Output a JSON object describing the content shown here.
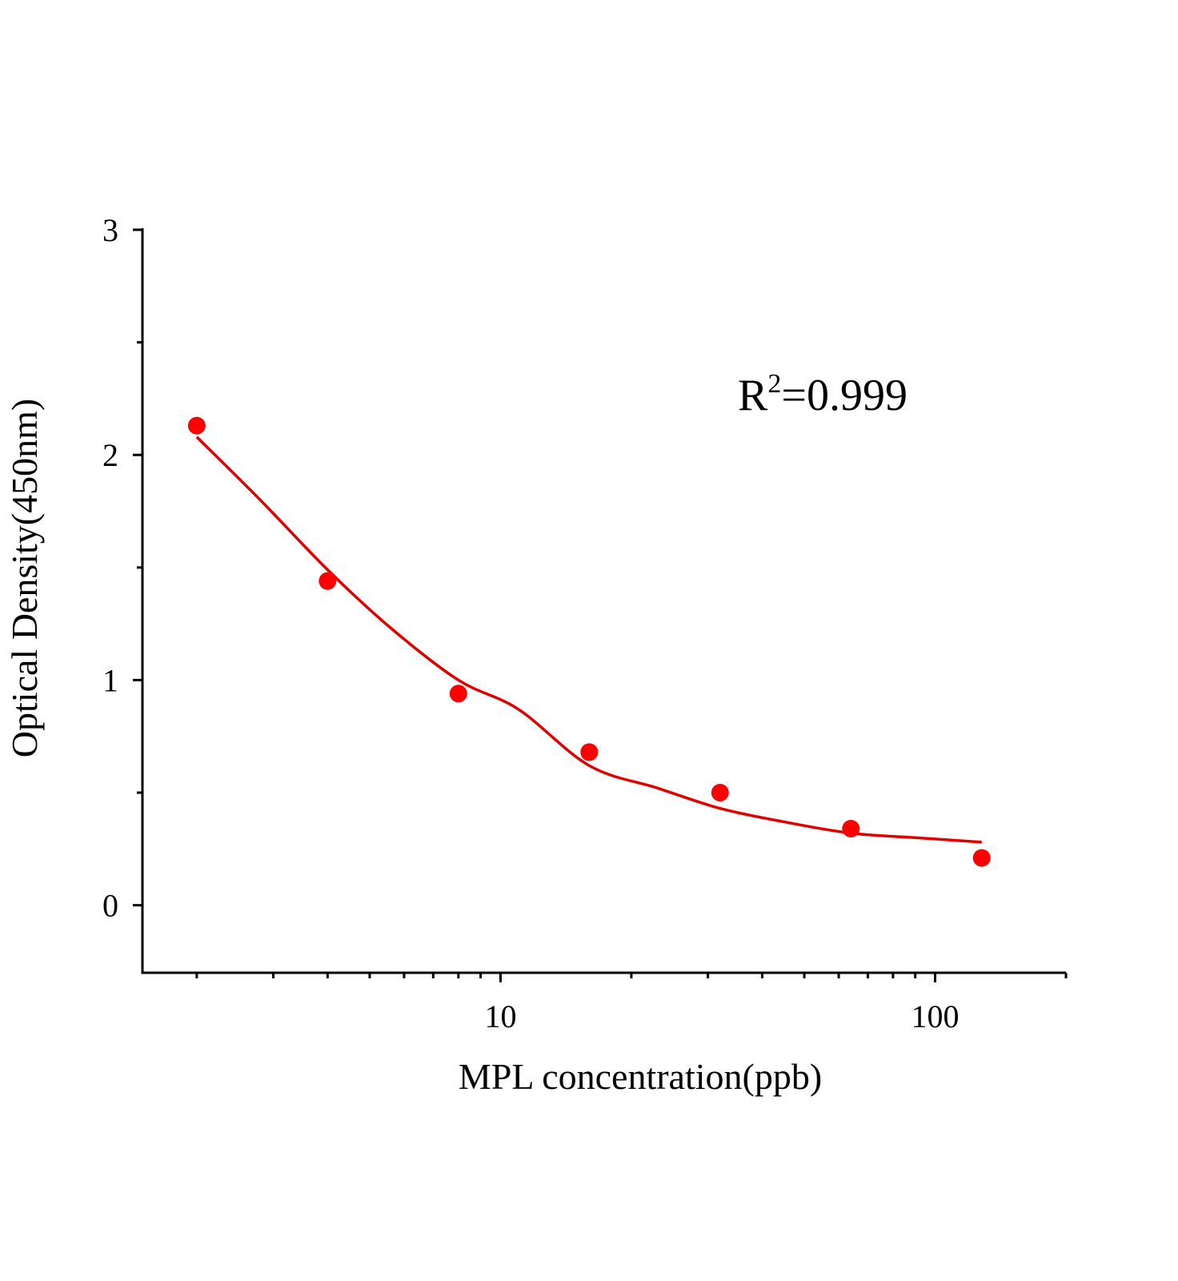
{
  "chart_data": {
    "type": "scatter",
    "x_label": "MPL concentration(ppb)",
    "y_label": "Optical Density(450nm)",
    "annotation": {
      "base": "R",
      "superscript": "2",
      "text": "=0.999"
    },
    "x_log": true,
    "xlim": [
      1.5,
      200
    ],
    "xticks": [
      10,
      100
    ],
    "xminorticks": [
      2,
      3,
      4,
      5,
      6,
      7,
      8,
      9,
      20,
      30,
      40,
      50,
      60,
      70,
      80,
      90,
      200
    ],
    "ylim": [
      -0.3,
      3
    ],
    "yticks": [
      0,
      1,
      2,
      3
    ],
    "yminorticks": [
      0.5,
      1.5,
      2.5
    ],
    "series": [
      {
        "color": "#ff0000",
        "x": [
          2,
          4,
          8,
          16,
          32,
          64,
          128
        ],
        "values": [
          2.13,
          1.44,
          0.94,
          0.68,
          0.5,
          0.34,
          0.21
        ]
      }
    ],
    "fit": {
      "color": "#e00000",
      "x": [
        2,
        2.8,
        4,
        5.6,
        8,
        11,
        16,
        23,
        32,
        45,
        64,
        90,
        128
      ],
      "values": [
        2.08,
        1.8,
        1.49,
        1.23,
        1.0,
        0.87,
        0.62,
        0.52,
        0.43,
        0.37,
        0.32,
        0.3,
        0.28
      ]
    }
  }
}
